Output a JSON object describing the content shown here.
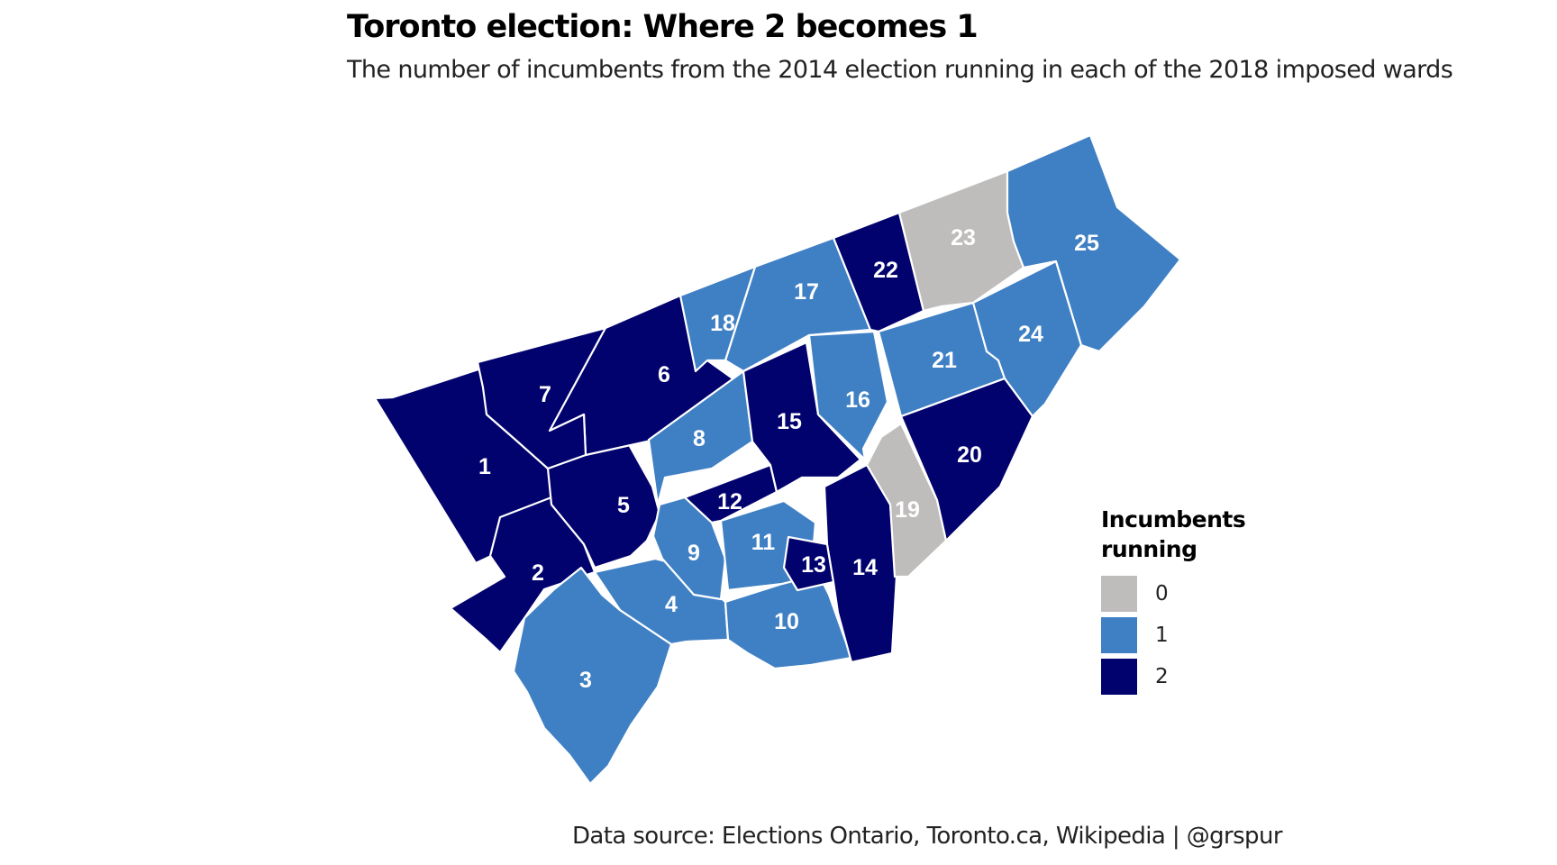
{
  "title": "Toronto election: Where 2 becomes 1",
  "subtitle": "The number of incumbents from the 2014 election running in each of the 2018 imposed wards",
  "caption": "Data source: Elections Ontario, Toronto.ca, Wikipedia | @grspur",
  "legend": {
    "title": "Incumbents running",
    "items": [
      {
        "label": "0",
        "value": 0,
        "color": "#bfbcbc"
      },
      {
        "label": "1",
        "value": 1,
        "color": "#3f80c4"
      },
      {
        "label": "2",
        "value": 2,
        "color": "#02026e"
      }
    ]
  },
  "wards": [
    {
      "label": "1",
      "incumbents": 2
    },
    {
      "label": "2",
      "incumbents": 2
    },
    {
      "label": "3",
      "incumbents": 1
    },
    {
      "label": "4",
      "incumbents": 1
    },
    {
      "label": "5",
      "incumbents": 2
    },
    {
      "label": "6",
      "incumbents": 2
    },
    {
      "label": "7",
      "incumbents": 2
    },
    {
      "label": "8",
      "incumbents": 1
    },
    {
      "label": "9",
      "incumbents": 1
    },
    {
      "label": "10",
      "incumbents": 1
    },
    {
      "label": "11",
      "incumbents": 1
    },
    {
      "label": "12",
      "incumbents": 2
    },
    {
      "label": "13",
      "incumbents": 2
    },
    {
      "label": "14",
      "incumbents": 2
    },
    {
      "label": "15",
      "incumbents": 2
    },
    {
      "label": "16",
      "incumbents": 1
    },
    {
      "label": "17",
      "incumbents": 1
    },
    {
      "label": "18",
      "incumbents": 1
    },
    {
      "label": "19",
      "incumbents": 0
    },
    {
      "label": "20",
      "incumbents": 2
    },
    {
      "label": "21",
      "incumbents": 1
    },
    {
      "label": "22",
      "incumbents": 2
    },
    {
      "label": "23",
      "incumbents": 0
    },
    {
      "label": "24",
      "incumbents": 1
    },
    {
      "label": "25",
      "incumbents": 1
    }
  ]
}
